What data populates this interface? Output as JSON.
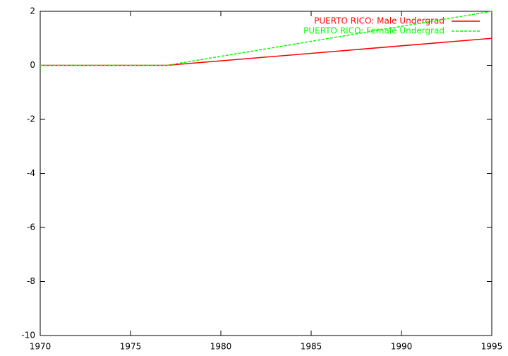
{
  "chart_data": {
    "type": "line",
    "x": [
      1970,
      1977,
      1995
    ],
    "series": [
      {
        "name": "PUERTO RICO: Male Undergrad",
        "color": "#ff0000",
        "dash": false,
        "values": [
          0,
          0,
          1
        ]
      },
      {
        "name": "PUERTO RICO: Female Undergrad",
        "color": "#00ff00",
        "dash": true,
        "values": [
          0,
          0,
          2
        ]
      }
    ],
    "xlim": [
      1970,
      1995
    ],
    "xticks": [
      1970,
      1975,
      1980,
      1985,
      1990,
      1995
    ],
    "ylim": [
      -10,
      2
    ],
    "yticks": [
      -10,
      -8,
      -6,
      -4,
      -2,
      0,
      2
    ],
    "grid": false,
    "legend": "top-right"
  }
}
